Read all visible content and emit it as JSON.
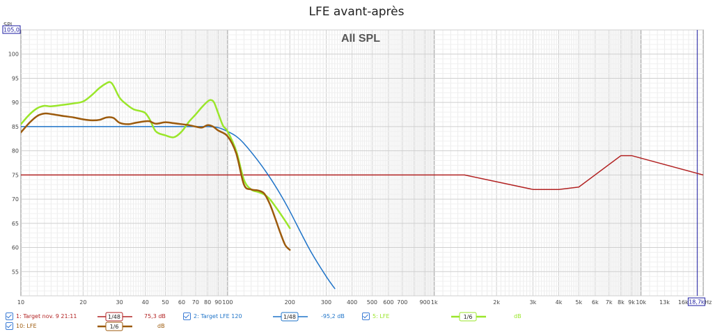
{
  "chart_data": {
    "type": "line",
    "title": "LFE avant-après",
    "plot_title": "All SPL",
    "x_unit": "Hz",
    "xscale": "log",
    "xlim": [
      10,
      20000
    ],
    "ylim": [
      50,
      105
    ],
    "y_axis_top_label": "105,0",
    "y_unit_label": "SPL",
    "x_right_marker": "18,7k",
    "grid": true,
    "y_ticks": [
      "100",
      "95",
      "90",
      "85",
      "80",
      "75",
      "70",
      "65",
      "60",
      "55"
    ],
    "x_ticks": [
      "10",
      "20",
      "30",
      "40",
      "50",
      "60",
      "70",
      "80",
      "90",
      "100",
      "200",
      "300",
      "400",
      "500",
      "600",
      "700",
      "900",
      "1k",
      "2k",
      "3k",
      "4k",
      "5k",
      "6k",
      "7k",
      "8k",
      "9k",
      "10k",
      "13k",
      "16k"
    ],
    "series": [
      {
        "name": "1: Target nov. 9 21:11",
        "color": "#b22222",
        "width": 1.5,
        "x": [
          10,
          1400,
          3000,
          4000,
          5000,
          8000,
          9000,
          20000
        ],
        "y": [
          75,
          75,
          72,
          72,
          72.5,
          79,
          79,
          75
        ]
      },
      {
        "name": "2: Target LFE 120",
        "color": "#1e73c8",
        "width": 1.5,
        "x": [
          10,
          15,
          20,
          30,
          50,
          70,
          80,
          90,
          100,
          110,
          120,
          140,
          160,
          180,
          200,
          250,
          300,
          330
        ],
        "y": [
          85,
          85,
          85,
          85,
          85,
          85,
          85,
          84.8,
          84,
          83,
          81.5,
          78,
          74.5,
          71,
          67.5,
          59.5,
          54,
          51.5
        ]
      },
      {
        "name": "5: LFE",
        "color": "#9ae62a",
        "width": 2.5,
        "x": [
          10,
          11,
          12,
          13,
          14,
          16,
          18,
          20,
          22,
          24,
          26,
          27,
          28,
          30,
          32,
          35,
          38,
          40,
          42,
          45,
          50,
          55,
          60,
          65,
          70,
          75,
          80,
          83,
          86,
          90,
          95,
          100,
          110,
          120,
          130,
          140,
          150,
          160,
          170,
          180,
          190,
          200
        ],
        "y": [
          85.5,
          87.5,
          88.8,
          89.3,
          89.2,
          89.5,
          89.8,
          90.2,
          91.5,
          93,
          94,
          94.2,
          93.5,
          91,
          89.8,
          88.6,
          88.2,
          87.8,
          86.5,
          84,
          83.2,
          82.8,
          84,
          86,
          87.5,
          89,
          90.2,
          90.5,
          90,
          87.8,
          85.2,
          84,
          80,
          74,
          72,
          71.5,
          71,
          70,
          68.5,
          67,
          65.5,
          64
        ]
      },
      {
        "name": "10: LFE",
        "color": "#9c5a0c",
        "width": 2.5,
        "x": [
          10,
          11,
          12,
          13,
          14,
          16,
          18,
          20,
          22,
          24,
          26,
          28,
          30,
          33,
          36,
          40,
          42,
          45,
          50,
          55,
          60,
          65,
          70,
          75,
          80,
          85,
          90,
          100,
          110,
          120,
          130,
          140,
          150,
          160,
          170,
          180,
          190,
          200
        ],
        "y": [
          83.8,
          85.8,
          87.2,
          87.7,
          87.6,
          87.2,
          86.9,
          86.5,
          86.3,
          86.4,
          86.9,
          86.8,
          85.8,
          85.5,
          85.8,
          86.1,
          86.1,
          85.6,
          85.9,
          85.7,
          85.5,
          85.3,
          85,
          84.8,
          85.3,
          85,
          84.2,
          83,
          79.5,
          73,
          72,
          71.8,
          71.2,
          69,
          66,
          63,
          60.5,
          59.5
        ]
      }
    ]
  },
  "legend": [
    {
      "label": "1: Target nov. 9 21:11",
      "smoothing": "1/48",
      "value": "75,3 dB",
      "color": "#b22222"
    },
    {
      "label": "2: Target LFE 120",
      "smoothing": "1/48",
      "value": "-95,2 dB",
      "color": "#1e73c8"
    },
    {
      "label": "5: LFE",
      "smoothing": "1/6",
      "value": "dB",
      "color": "#9ae62a"
    },
    {
      "label": "10: LFE",
      "smoothing": "1/6",
      "value": "dB",
      "color": "#9c5a0c"
    }
  ]
}
